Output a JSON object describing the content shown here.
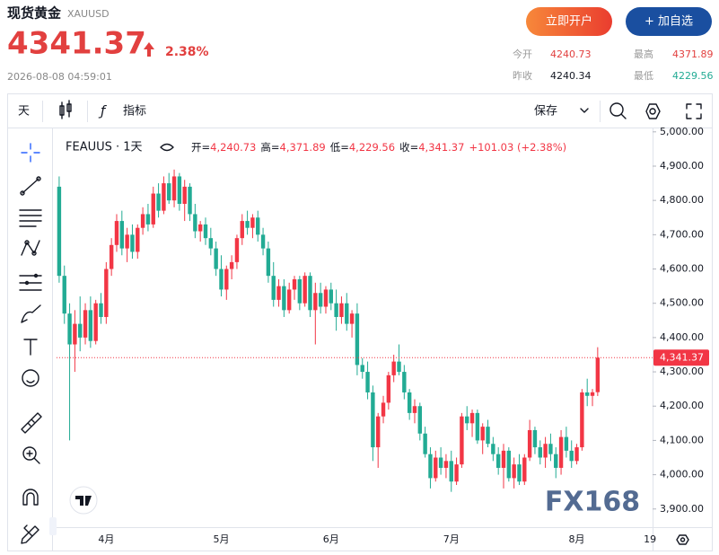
{
  "header": {
    "title": "现货黄金",
    "code": "XAUUSD",
    "price": "4341.37",
    "change": "2.38%",
    "timestamp": "2026-08-08 04:59:01",
    "buttons": [
      "立即开户",
      "+ 加自选"
    ],
    "stats": [
      {
        "label": "今开",
        "value": "4240.73"
      },
      {
        "label": "最高",
        "value": "4371.89"
      },
      {
        "label": "昨收",
        "value": "4240.34"
      },
      {
        "label": "最低",
        "value": "4229.56"
      }
    ]
  },
  "toolbar": {
    "interval": "天",
    "indicators": "指标",
    "save": "保存"
  },
  "watermark": "FX168",
  "chart_data": {
    "type": "candlestick",
    "symbol": "FEAUUS · 1天",
    "legend": [
      {
        "label": "开=",
        "value": "4,240.73"
      },
      {
        "label": "高=",
        "value": "4,371.89"
      },
      {
        "label": "低=",
        "value": "4,229.56"
      },
      {
        "label": "收=",
        "value": "4,341.37"
      }
    ],
    "legend_change": "+101.03 (+2.38%)",
    "up_color": "#f23645",
    "down_color": "#22ab94",
    "open": [
      4840,
      4580,
      4470,
      4380,
      4440,
      4400,
      4480,
      4390,
      4500,
      4460,
      4600,
      4670,
      4740,
      4660,
      4700,
      4650,
      4720,
      4760,
      4730,
      4820,
      4770,
      4850,
      4800,
      4870,
      4790,
      4840,
      4760,
      4710,
      4730,
      4690,
      4660,
      4600,
      4540,
      4600,
      4620,
      4690,
      4740,
      4720,
      4750,
      4700,
      4660,
      4580,
      4510,
      4550,
      4480,
      4540,
      4570,
      4500,
      4580,
      4480,
      4530,
      4490,
      4540,
      4500,
      4460,
      4500,
      4440,
      4470,
      4320,
      4300,
      4240,
      4080,
      4170,
      4210,
      4290,
      4330,
      4300,
      4240,
      4180,
      4200,
      4120,
      4060,
      3990,
      4050,
      4020,
      4040,
      3980,
      4030,
      4170,
      4150,
      4180,
      4100,
      4140,
      4090,
      4060,
      4020,
      4070,
      3990,
      4030,
      3980,
      4050,
      4130,
      4080,
      4050,
      4090,
      4060,
      4020,
      4110,
      4070,
      4040,
      4080,
      4240,
      4230,
      4240.73
    ],
    "high": [
      4870,
      4610,
      4500,
      4480,
      4520,
      4500,
      4520,
      4510,
      4530,
      4620,
      4690,
      4760,
      4770,
      4720,
      4730,
      4730,
      4780,
      4790,
      4840,
      4850,
      4870,
      4880,
      4890,
      4880,
      4860,
      4850,
      4790,
      4740,
      4750,
      4720,
      4680,
      4640,
      4610,
      4640,
      4700,
      4760,
      4770,
      4760,
      4770,
      4720,
      4680,
      4620,
      4570,
      4570,
      4560,
      4580,
      4580,
      4590,
      4590,
      4560,
      4560,
      4550,
      4560,
      4540,
      4520,
      4530,
      4480,
      4500,
      4340,
      4330,
      4260,
      4180,
      4230,
      4300,
      4350,
      4380,
      4320,
      4250,
      4220,
      4210,
      4140,
      4080,
      4070,
      4080,
      4060,
      4070,
      4050,
      4180,
      4200,
      4190,
      4190,
      4150,
      4160,
      4110,
      4080,
      4090,
      4080,
      4050,
      4060,
      4060,
      4160,
      4140,
      4100,
      4110,
      4120,
      4080,
      4130,
      4140,
      4100,
      4090,
      4250,
      4280,
      4250,
      4371.89
    ],
    "low": [
      4560,
      4440,
      4100,
      4300,
      4360,
      4380,
      4370,
      4380,
      4440,
      4440,
      4580,
      4650,
      4640,
      4620,
      4630,
      4630,
      4700,
      4710,
      4720,
      4750,
      4760,
      4790,
      4780,
      4770,
      4740,
      4740,
      4690,
      4680,
      4670,
      4640,
      4580,
      4520,
      4510,
      4570,
      4600,
      4670,
      4700,
      4690,
      4680,
      4640,
      4560,
      4490,
      4490,
      4460,
      4470,
      4510,
      4480,
      4490,
      4460,
      4380,
      4470,
      4470,
      4480,
      4420,
      4440,
      4420,
      4400,
      4290,
      4280,
      4220,
      4040,
      4020,
      4150,
      4190,
      4270,
      4290,
      4220,
      4160,
      4150,
      4100,
      4050,
      3960,
      3980,
      4000,
      3990,
      3950,
      3970,
      4020,
      4130,
      4110,
      4090,
      4060,
      4080,
      4040,
      4000,
      3960,
      3980,
      3960,
      3970,
      3970,
      4040,
      4060,
      4030,
      4020,
      4040,
      3990,
      4000,
      4050,
      4020,
      4030,
      4070,
      4200,
      4200,
      4229.56
    ],
    "close": [
      4580,
      4470,
      4380,
      4440,
      4400,
      4480,
      4390,
      4500,
      4460,
      4600,
      4670,
      4740,
      4660,
      4700,
      4650,
      4720,
      4760,
      4730,
      4820,
      4770,
      4850,
      4800,
      4870,
      4790,
      4840,
      4760,
      4710,
      4730,
      4690,
      4660,
      4600,
      4540,
      4600,
      4620,
      4690,
      4740,
      4720,
      4750,
      4700,
      4660,
      4580,
      4510,
      4550,
      4480,
      4540,
      4570,
      4500,
      4580,
      4480,
      4530,
      4490,
      4540,
      4500,
      4460,
      4500,
      4440,
      4470,
      4320,
      4300,
      4240,
      4080,
      4170,
      4210,
      4290,
      4330,
      4300,
      4240,
      4180,
      4200,
      4120,
      4060,
      3990,
      4050,
      4020,
      4040,
      3980,
      4030,
      4170,
      4150,
      4180,
      4100,
      4140,
      4090,
      4060,
      4020,
      4070,
      3990,
      4030,
      3980,
      4050,
      4130,
      4080,
      4050,
      4090,
      4060,
      4020,
      4110,
      4070,
      4040,
      4080,
      4240,
      4230,
      4240.34,
      4341.37
    ],
    "last_price": {
      "value": 4341.37,
      "label": "4,341.37"
    },
    "ylim": [
      3847,
      5010
    ],
    "yticks": [
      {
        "value": 3900,
        "label": "3,900.00"
      },
      {
        "value": 4000,
        "label": "4,000.00"
      },
      {
        "value": 4100,
        "label": "4,100.00"
      },
      {
        "value": 4200,
        "label": "4,200.00"
      },
      {
        "value": 4300,
        "label": "4,300.00"
      },
      {
        "value": 4400,
        "label": "4,400.00"
      },
      {
        "value": 4500,
        "label": "4,500.00"
      },
      {
        "value": 4600,
        "label": "4,600.00"
      },
      {
        "value": 4700,
        "label": "4,700.00"
      },
      {
        "value": 4800,
        "label": "4,800.00"
      },
      {
        "value": 4900,
        "label": "4,900.00"
      },
      {
        "value": 5000,
        "label": "5,000.00"
      }
    ],
    "xlim": [
      -0.5,
      113.5
    ],
    "xticks": [
      {
        "value": 9,
        "label": "4月"
      },
      {
        "value": 31,
        "label": "5月"
      },
      {
        "value": 52,
        "label": "6月"
      },
      {
        "value": 75,
        "label": "7月"
      },
      {
        "value": 99,
        "label": "8月"
      },
      {
        "value": 113,
        "label": "19"
      }
    ],
    "grid": false
  }
}
